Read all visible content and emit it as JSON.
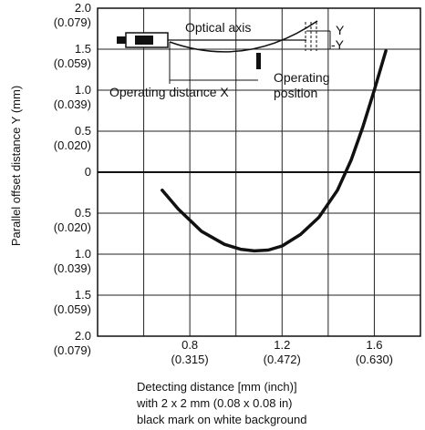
{
  "chart_data": {
    "type": "line",
    "xlabel": "Detecting distance [mm (inch)]",
    "xlabel_note": [
      "with 2 x 2 mm (0.08 x 0.08 in)",
      "black mark on white background"
    ],
    "ylabel": "Parallel offset distance Y (mm)",
    "xlim": [
      0.4,
      1.8
    ],
    "ylim": [
      -2.0,
      2.0
    ],
    "grid": true,
    "x_ticks": [
      {
        "value": 0.8,
        "label": "0.8",
        "sublabel": "(0.315)"
      },
      {
        "value": 1.2,
        "label": "1.2",
        "sublabel": "(0.472)"
      },
      {
        "value": 1.6,
        "label": "1.6",
        "sublabel": "(0.630)"
      }
    ],
    "y_ticks": [
      {
        "value": 2.0,
        "label": "2.0",
        "sublabel": "(0.079)"
      },
      {
        "value": 1.5,
        "label": "1.5",
        "sublabel": "(0.059)"
      },
      {
        "value": 1.0,
        "label": "1.0",
        "sublabel": "(0.039)"
      },
      {
        "value": 0.5,
        "label": "0.5",
        "sublabel": "(0.020)"
      },
      {
        "value": 0.0,
        "label": "0",
        "sublabel": ""
      },
      {
        "value": -0.5,
        "label": "0.5",
        "sublabel": "(0.020)"
      },
      {
        "value": -1.0,
        "label": "1.0",
        "sublabel": "(0.039)"
      },
      {
        "value": -1.5,
        "label": "1.5",
        "sublabel": "(0.059)"
      },
      {
        "value": -2.0,
        "label": "2.0",
        "sublabel": "(0.079)"
      }
    ],
    "series": [
      {
        "x": [
          0.68,
          0.75,
          0.85,
          0.95,
          1.02,
          1.08,
          1.14,
          1.2,
          1.28,
          1.36,
          1.44,
          1.5,
          1.55,
          1.6,
          1.65
        ],
        "y": [
          -0.22,
          -0.45,
          -0.72,
          -0.88,
          -0.94,
          -0.96,
          -0.95,
          -0.9,
          -0.76,
          -0.55,
          -0.22,
          0.15,
          0.55,
          1.0,
          1.48
        ]
      }
    ],
    "inset": {
      "optical_axis_label": "Optical axis",
      "operating_distance_label": "Operating distance X",
      "operating_position_label": [
        "Operating",
        "position"
      ],
      "y_labels": [
        "Y",
        "-Y"
      ]
    }
  }
}
